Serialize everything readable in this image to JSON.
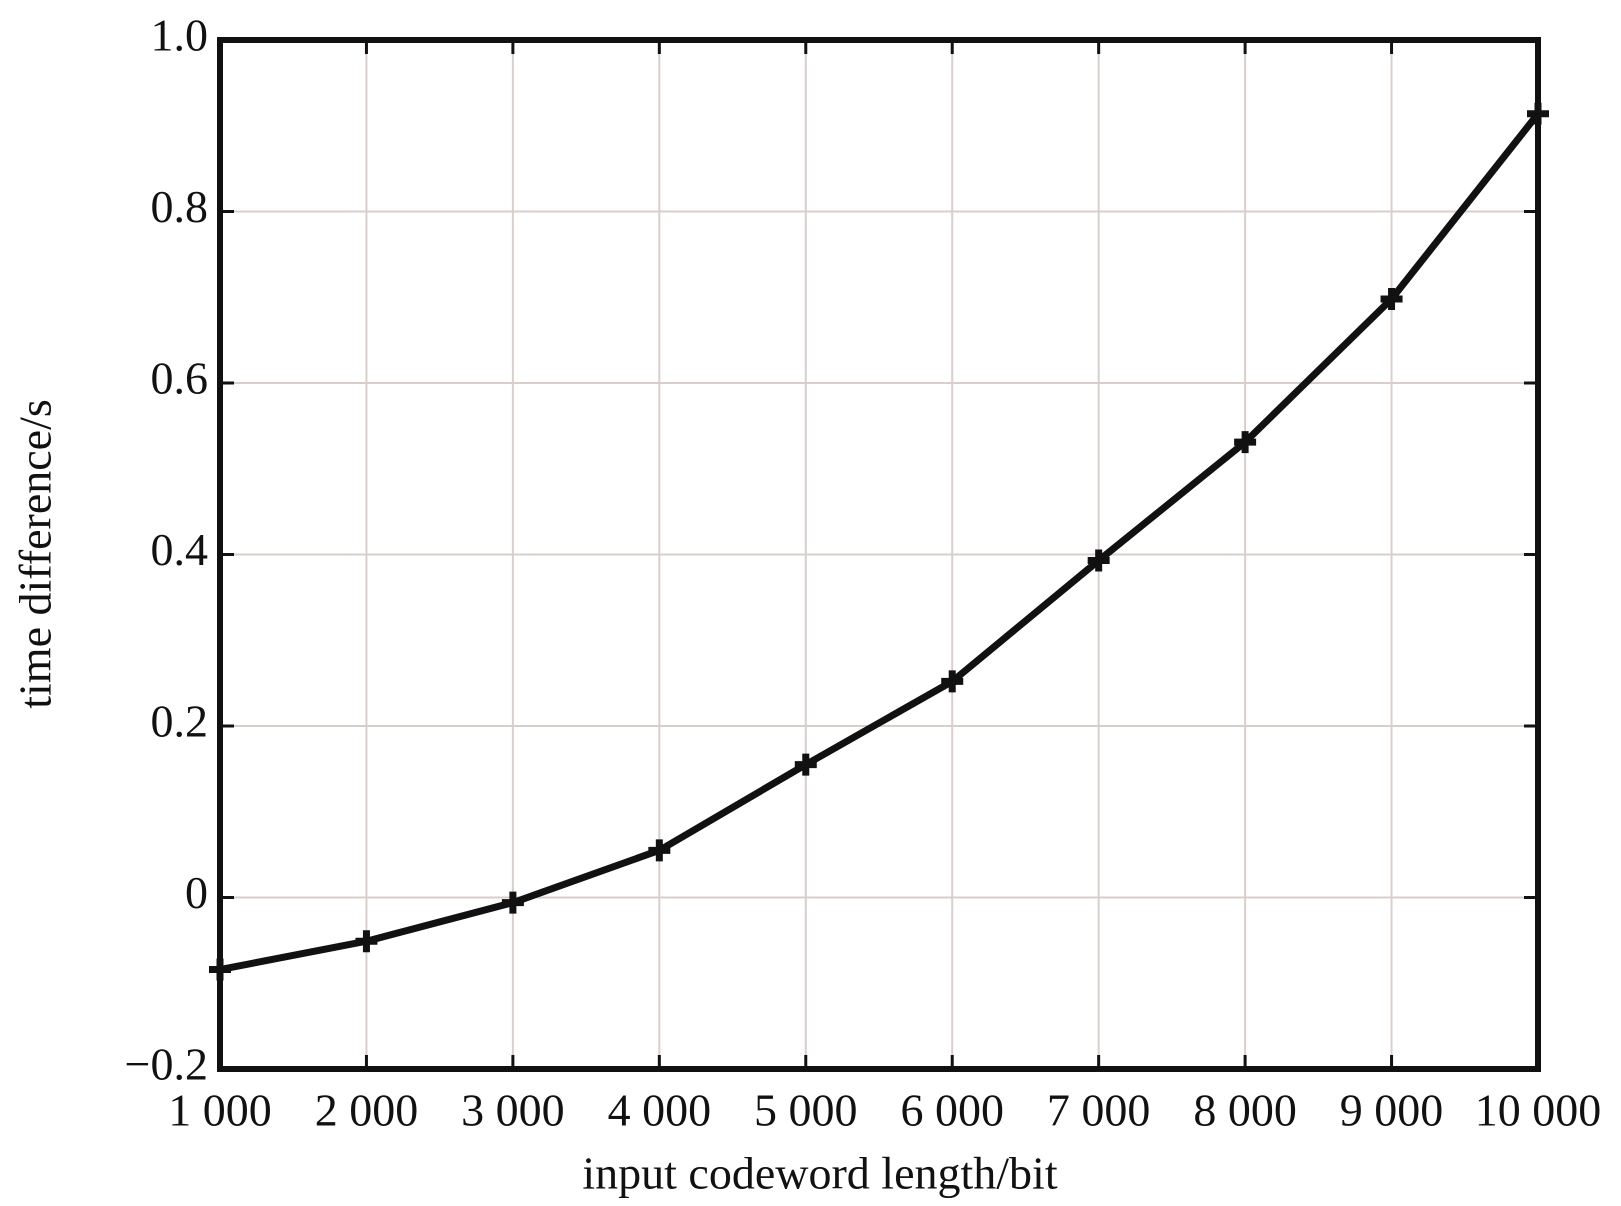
{
  "chart_data": {
    "type": "line",
    "x_label": "input codeword length/bit",
    "y_label": "time difference/s",
    "x": [
      1000,
      2000,
      3000,
      4000,
      5000,
      6000,
      7000,
      8000,
      9000,
      10000
    ],
    "series": [
      {
        "color": "#111111",
        "values": [
          -0.084,
          -0.051,
          -0.006,
          0.055,
          0.155,
          0.252,
          0.393,
          0.531,
          0.698,
          0.914
        ]
      }
    ],
    "xlim": [
      1000,
      10000
    ],
    "xticks": [
      {
        "value": 1000,
        "label": "1 000"
      },
      {
        "value": 2000,
        "label": "2 000"
      },
      {
        "value": 3000,
        "label": "3 000"
      },
      {
        "value": 4000,
        "label": "4 000"
      },
      {
        "value": 5000,
        "label": "5 000"
      },
      {
        "value": 6000,
        "label": "6 000"
      },
      {
        "value": 7000,
        "label": "7 000"
      },
      {
        "value": 8000,
        "label": "8 000"
      },
      {
        "value": 9000,
        "label": "9 000"
      },
      {
        "value": 10000,
        "label": "10 000"
      }
    ],
    "ylim": [
      -0.2,
      1
    ],
    "yticks": [
      {
        "value": -0.2,
        "label": "−0.2"
      },
      0,
      0.2,
      0.4,
      0.6,
      0.8,
      {
        "value": 1,
        "label": "1.0"
      }
    ],
    "grid": true
  }
}
